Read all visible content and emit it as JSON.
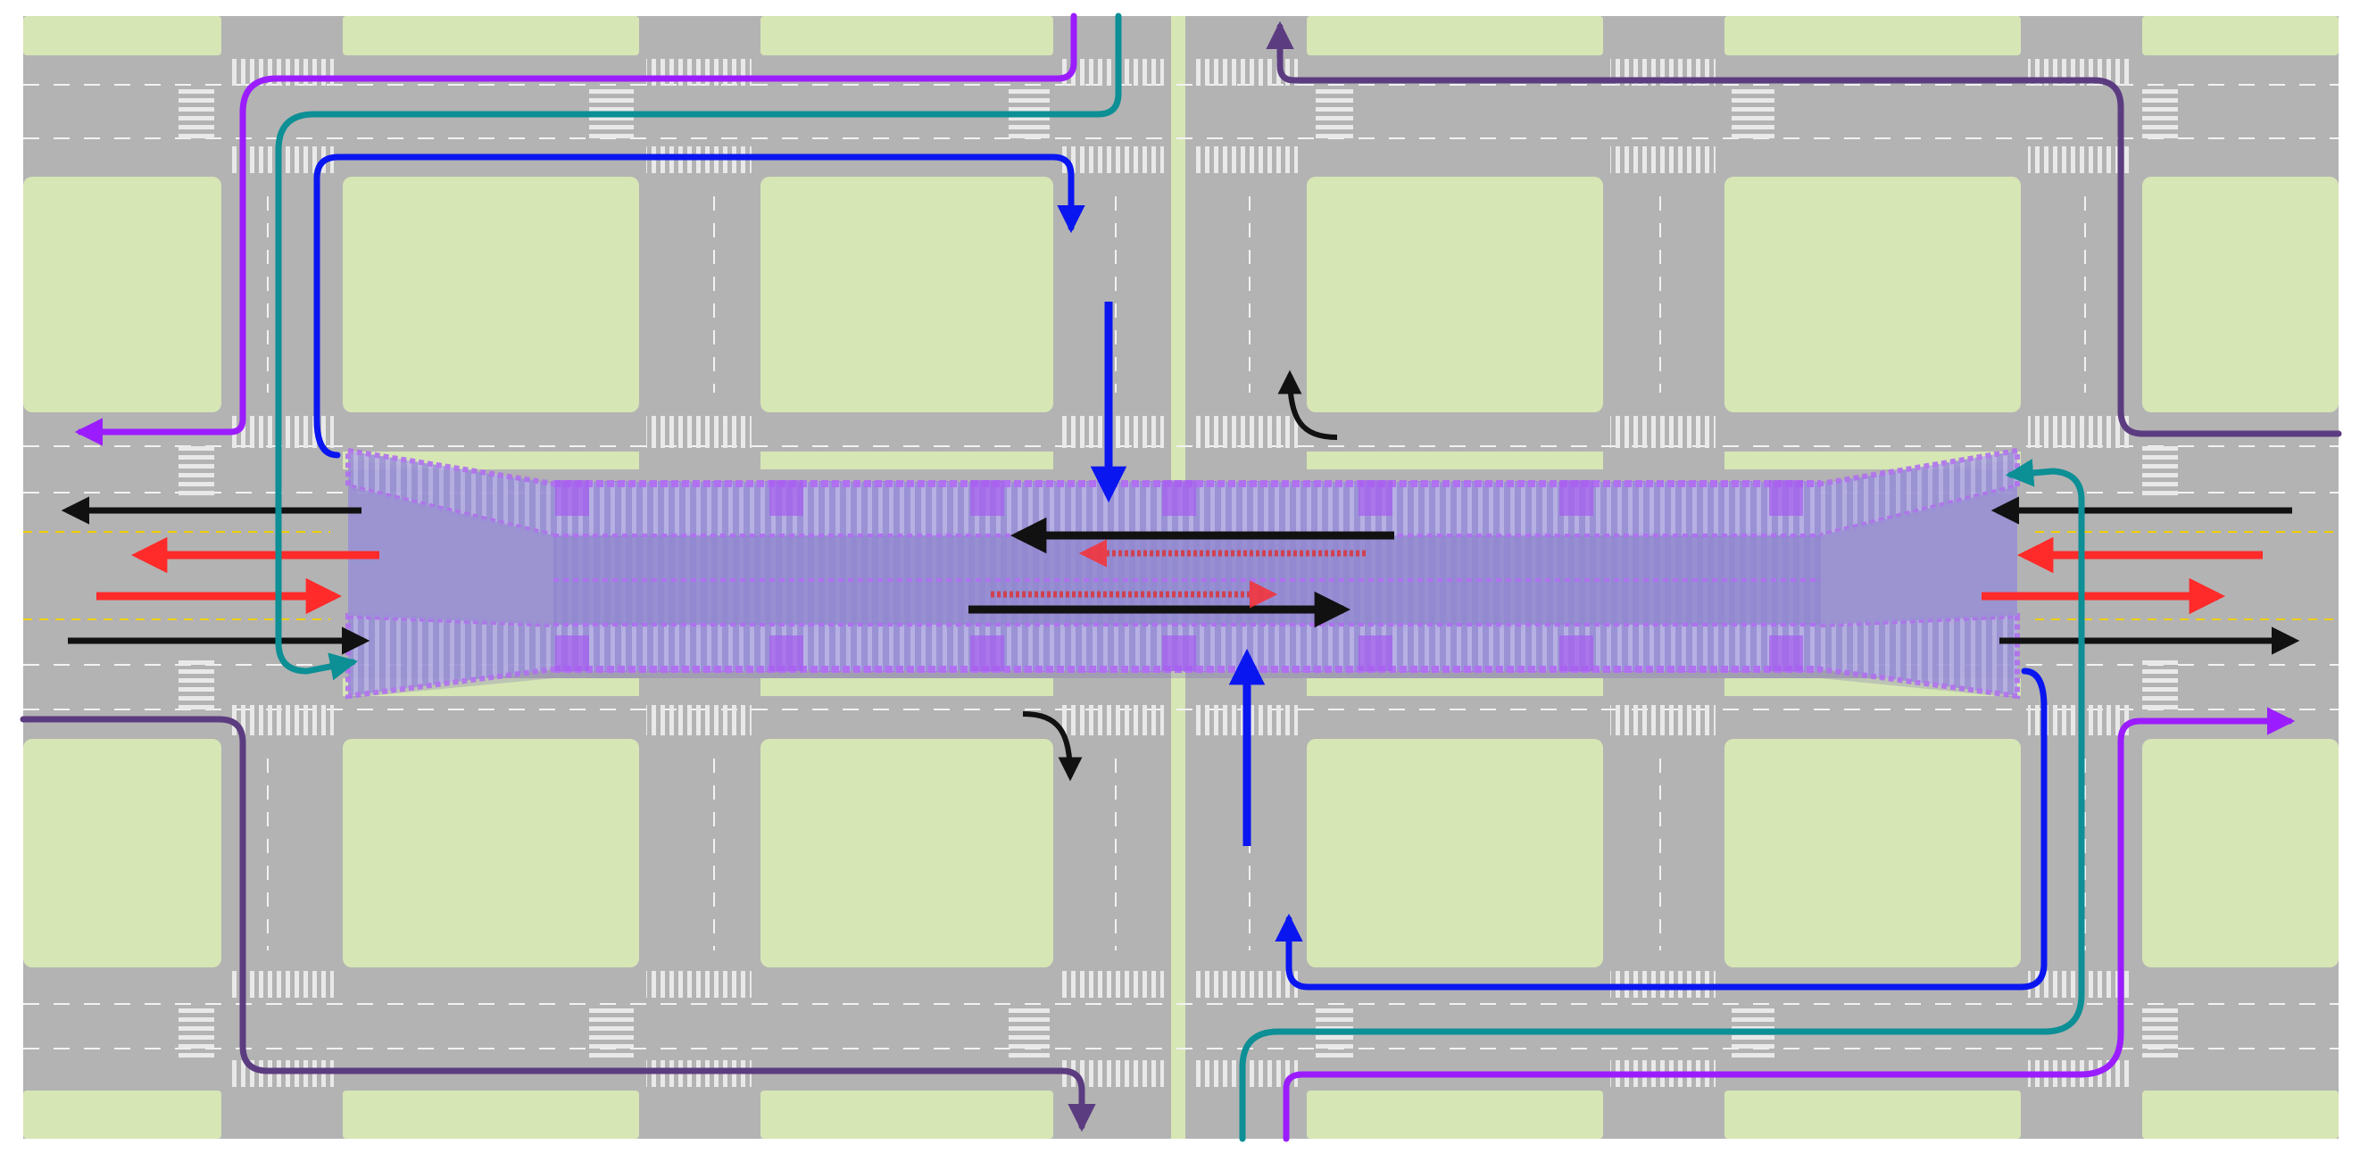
{
  "colors": {
    "background": "#ffffff",
    "road": "#b3b3b3",
    "block": "#d7e6b5",
    "lane_white": "#f2f2f2",
    "lane_yellow": "#f0d000",
    "crosswalk": "#e8e8e8",
    "bridge_fill": "#8a7ae0",
    "bridge_edge": "#b070f0",
    "bridge_deck": "#9b8fd8",
    "arrow_black": "#111111",
    "arrow_red": "#ff2a2a",
    "route_violet": "#9b1dff",
    "route_teal": "#0c8f95",
    "route_blue": "#0a16f0",
    "route_plum": "#5c3c80"
  },
  "diagram": {
    "description_icons": [
      "arrow-icon"
    ],
    "legend": []
  }
}
